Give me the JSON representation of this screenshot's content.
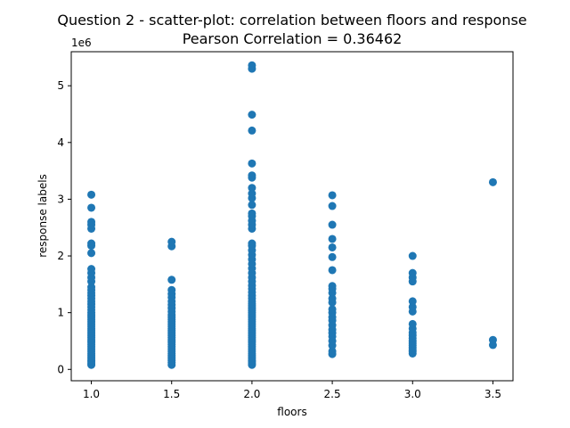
{
  "chart_data": {
    "type": "scatter",
    "title": "Question 2 - scatter-plot: correlation between floors and response",
    "subtitle": "Pearson Correlation = 0.36462",
    "xlabel": "floors",
    "ylabel": "response labels",
    "y_offset_label": "1e6",
    "xlim": [
      0.875,
      3.625
    ],
    "ylim": [
      -0.2,
      5.6
    ],
    "x_ticks": [
      {
        "value": 1.0,
        "label": "1.0"
      },
      {
        "value": 1.5,
        "label": "1.5"
      },
      {
        "value": 2.0,
        "label": "2.0"
      },
      {
        "value": 2.5,
        "label": "2.5"
      },
      {
        "value": 3.0,
        "label": "3.0"
      },
      {
        "value": 3.5,
        "label": "3.5"
      }
    ],
    "y_ticks": [
      {
        "value": 0,
        "label": "0"
      },
      {
        "value": 1,
        "label": "1"
      },
      {
        "value": 2,
        "label": "2"
      },
      {
        "value": 3,
        "label": "3"
      },
      {
        "value": 4,
        "label": "4"
      },
      {
        "value": 5,
        "label": "5"
      }
    ],
    "grid": false,
    "marker_color": "#1f77b4",
    "series": [
      {
        "points": [
          [
            1.0,
            0.08
          ],
          [
            1.0,
            0.1
          ],
          [
            1.0,
            0.13
          ],
          [
            1.0,
            0.16
          ],
          [
            1.0,
            0.2
          ],
          [
            1.0,
            0.24
          ],
          [
            1.0,
            0.28
          ],
          [
            1.0,
            0.32
          ],
          [
            1.0,
            0.36
          ],
          [
            1.0,
            0.4
          ],
          [
            1.0,
            0.44
          ],
          [
            1.0,
            0.48
          ],
          [
            1.0,
            0.52
          ],
          [
            1.0,
            0.56
          ],
          [
            1.0,
            0.6
          ],
          [
            1.0,
            0.64
          ],
          [
            1.0,
            0.68
          ],
          [
            1.0,
            0.72
          ],
          [
            1.0,
            0.76
          ],
          [
            1.0,
            0.8
          ],
          [
            1.0,
            0.84
          ],
          [
            1.0,
            0.88
          ],
          [
            1.0,
            0.92
          ],
          [
            1.0,
            0.96
          ],
          [
            1.0,
            1.0
          ],
          [
            1.0,
            1.05
          ],
          [
            1.0,
            1.1
          ],
          [
            1.0,
            1.15
          ],
          [
            1.0,
            1.2
          ],
          [
            1.0,
            1.25
          ],
          [
            1.0,
            1.3
          ],
          [
            1.0,
            1.35
          ],
          [
            1.0,
            1.4
          ],
          [
            1.0,
            1.45
          ],
          [
            1.0,
            1.55
          ],
          [
            1.0,
            1.62
          ],
          [
            1.0,
            1.7
          ],
          [
            1.0,
            1.77
          ],
          [
            1.0,
            2.05
          ],
          [
            1.0,
            2.18
          ],
          [
            1.0,
            2.22
          ],
          [
            1.0,
            2.48
          ],
          [
            1.0,
            2.55
          ],
          [
            1.0,
            2.6
          ],
          [
            1.0,
            2.85
          ],
          [
            1.0,
            3.08
          ],
          [
            1.5,
            0.08
          ],
          [
            1.5,
            0.12
          ],
          [
            1.5,
            0.16
          ],
          [
            1.5,
            0.2
          ],
          [
            1.5,
            0.24
          ],
          [
            1.5,
            0.28
          ],
          [
            1.5,
            0.32
          ],
          [
            1.5,
            0.36
          ],
          [
            1.5,
            0.4
          ],
          [
            1.5,
            0.44
          ],
          [
            1.5,
            0.48
          ],
          [
            1.5,
            0.52
          ],
          [
            1.5,
            0.56
          ],
          [
            1.5,
            0.6
          ],
          [
            1.5,
            0.64
          ],
          [
            1.5,
            0.68
          ],
          [
            1.5,
            0.72
          ],
          [
            1.5,
            0.76
          ],
          [
            1.5,
            0.8
          ],
          [
            1.5,
            0.84
          ],
          [
            1.5,
            0.88
          ],
          [
            1.5,
            0.92
          ],
          [
            1.5,
            0.96
          ],
          [
            1.5,
            1.02
          ],
          [
            1.5,
            1.08
          ],
          [
            1.5,
            1.14
          ],
          [
            1.5,
            1.2
          ],
          [
            1.5,
            1.27
          ],
          [
            1.5,
            1.33
          ],
          [
            1.5,
            1.4
          ],
          [
            1.5,
            1.58
          ],
          [
            1.5,
            2.17
          ],
          [
            1.5,
            2.25
          ],
          [
            2.0,
            0.08
          ],
          [
            2.0,
            0.1
          ],
          [
            2.0,
            0.13
          ],
          [
            2.0,
            0.16
          ],
          [
            2.0,
            0.2
          ],
          [
            2.0,
            0.24
          ],
          [
            2.0,
            0.28
          ],
          [
            2.0,
            0.32
          ],
          [
            2.0,
            0.36
          ],
          [
            2.0,
            0.4
          ],
          [
            2.0,
            0.44
          ],
          [
            2.0,
            0.48
          ],
          [
            2.0,
            0.52
          ],
          [
            2.0,
            0.56
          ],
          [
            2.0,
            0.6
          ],
          [
            2.0,
            0.64
          ],
          [
            2.0,
            0.68
          ],
          [
            2.0,
            0.72
          ],
          [
            2.0,
            0.76
          ],
          [
            2.0,
            0.8
          ],
          [
            2.0,
            0.84
          ],
          [
            2.0,
            0.88
          ],
          [
            2.0,
            0.92
          ],
          [
            2.0,
            0.96
          ],
          [
            2.0,
            1.0
          ],
          [
            2.0,
            1.04
          ],
          [
            2.0,
            1.08
          ],
          [
            2.0,
            1.12
          ],
          [
            2.0,
            1.16
          ],
          [
            2.0,
            1.2
          ],
          [
            2.0,
            1.25
          ],
          [
            2.0,
            1.3
          ],
          [
            2.0,
            1.36
          ],
          [
            2.0,
            1.42
          ],
          [
            2.0,
            1.48
          ],
          [
            2.0,
            1.55
          ],
          [
            2.0,
            1.62
          ],
          [
            2.0,
            1.7
          ],
          [
            2.0,
            1.78
          ],
          [
            2.0,
            1.86
          ],
          [
            2.0,
            1.94
          ],
          [
            2.0,
            2.02
          ],
          [
            2.0,
            2.1
          ],
          [
            2.0,
            2.18
          ],
          [
            2.0,
            2.22
          ],
          [
            2.0,
            2.48
          ],
          [
            2.0,
            2.55
          ],
          [
            2.0,
            2.62
          ],
          [
            2.0,
            2.7
          ],
          [
            2.0,
            2.75
          ],
          [
            2.0,
            2.9
          ],
          [
            2.0,
            3.02
          ],
          [
            2.0,
            3.1
          ],
          [
            2.0,
            3.2
          ],
          [
            2.0,
            3.38
          ],
          [
            2.0,
            3.42
          ],
          [
            2.0,
            3.63
          ],
          [
            2.0,
            4.21
          ],
          [
            2.0,
            4.49
          ],
          [
            2.0,
            5.3
          ],
          [
            2.0,
            5.36
          ],
          [
            2.5,
            0.27
          ],
          [
            2.5,
            0.32
          ],
          [
            2.5,
            0.42
          ],
          [
            2.5,
            0.5
          ],
          [
            2.5,
            0.58
          ],
          [
            2.5,
            0.64
          ],
          [
            2.5,
            0.7
          ],
          [
            2.5,
            0.78
          ],
          [
            2.5,
            0.86
          ],
          [
            2.5,
            0.92
          ],
          [
            2.5,
            1.0
          ],
          [
            2.5,
            1.06
          ],
          [
            2.5,
            1.18
          ],
          [
            2.5,
            1.25
          ],
          [
            2.5,
            1.35
          ],
          [
            2.5,
            1.42
          ],
          [
            2.5,
            1.47
          ],
          [
            2.5,
            1.75
          ],
          [
            2.5,
            1.98
          ],
          [
            2.5,
            2.15
          ],
          [
            2.5,
            2.3
          ],
          [
            2.5,
            2.55
          ],
          [
            2.5,
            2.88
          ],
          [
            2.5,
            3.07
          ],
          [
            3.0,
            0.28
          ],
          [
            3.0,
            0.31
          ],
          [
            3.0,
            0.34
          ],
          [
            3.0,
            0.38
          ],
          [
            3.0,
            0.42
          ],
          [
            3.0,
            0.46
          ],
          [
            3.0,
            0.5
          ],
          [
            3.0,
            0.55
          ],
          [
            3.0,
            0.6
          ],
          [
            3.0,
            0.65
          ],
          [
            3.0,
            0.72
          ],
          [
            3.0,
            0.8
          ],
          [
            3.0,
            1.02
          ],
          [
            3.0,
            1.1
          ],
          [
            3.0,
            1.2
          ],
          [
            3.0,
            1.55
          ],
          [
            3.0,
            1.62
          ],
          [
            3.0,
            1.7
          ],
          [
            3.0,
            2.0
          ],
          [
            3.5,
            0.43
          ],
          [
            3.5,
            0.52
          ],
          [
            3.5,
            3.3
          ]
        ]
      }
    ]
  }
}
